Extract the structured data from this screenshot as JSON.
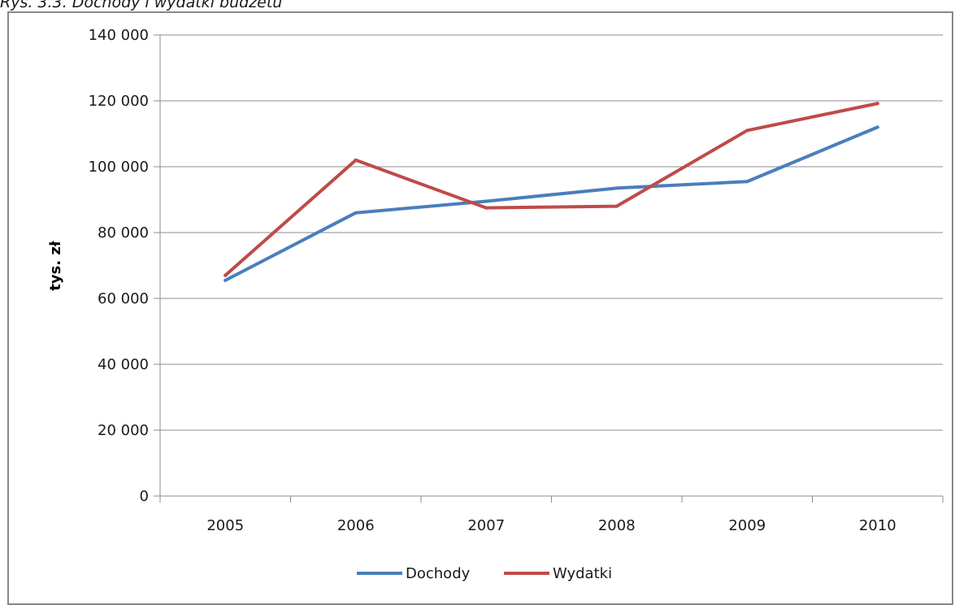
{
  "caption": "Rys. 3.3. Dochody i wydatki budżetu",
  "chart_data": {
    "type": "line",
    "title": "",
    "xlabel": "",
    "ylabel": "tys. zł",
    "categories": [
      "2005",
      "2006",
      "2007",
      "2008",
      "2009",
      "2010"
    ],
    "ylim": [
      0,
      140000
    ],
    "yticks": [
      0,
      20000,
      40000,
      60000,
      80000,
      100000,
      120000,
      140000
    ],
    "ytick_labels": [
      "0",
      "20 000",
      "40 000",
      "60 000",
      "80 000",
      "100 000",
      "120 000",
      "140 000"
    ],
    "grid": "horizontal",
    "legend_position": "bottom",
    "series": [
      {
        "name": "Dochody",
        "color": "#4a7ebb",
        "values": [
          65500,
          86000,
          89500,
          93500,
          95500,
          112000
        ]
      },
      {
        "name": "Wydatki",
        "color": "#be4b48",
        "values": [
          67000,
          102000,
          87500,
          88000,
          111000,
          119200
        ]
      }
    ]
  }
}
